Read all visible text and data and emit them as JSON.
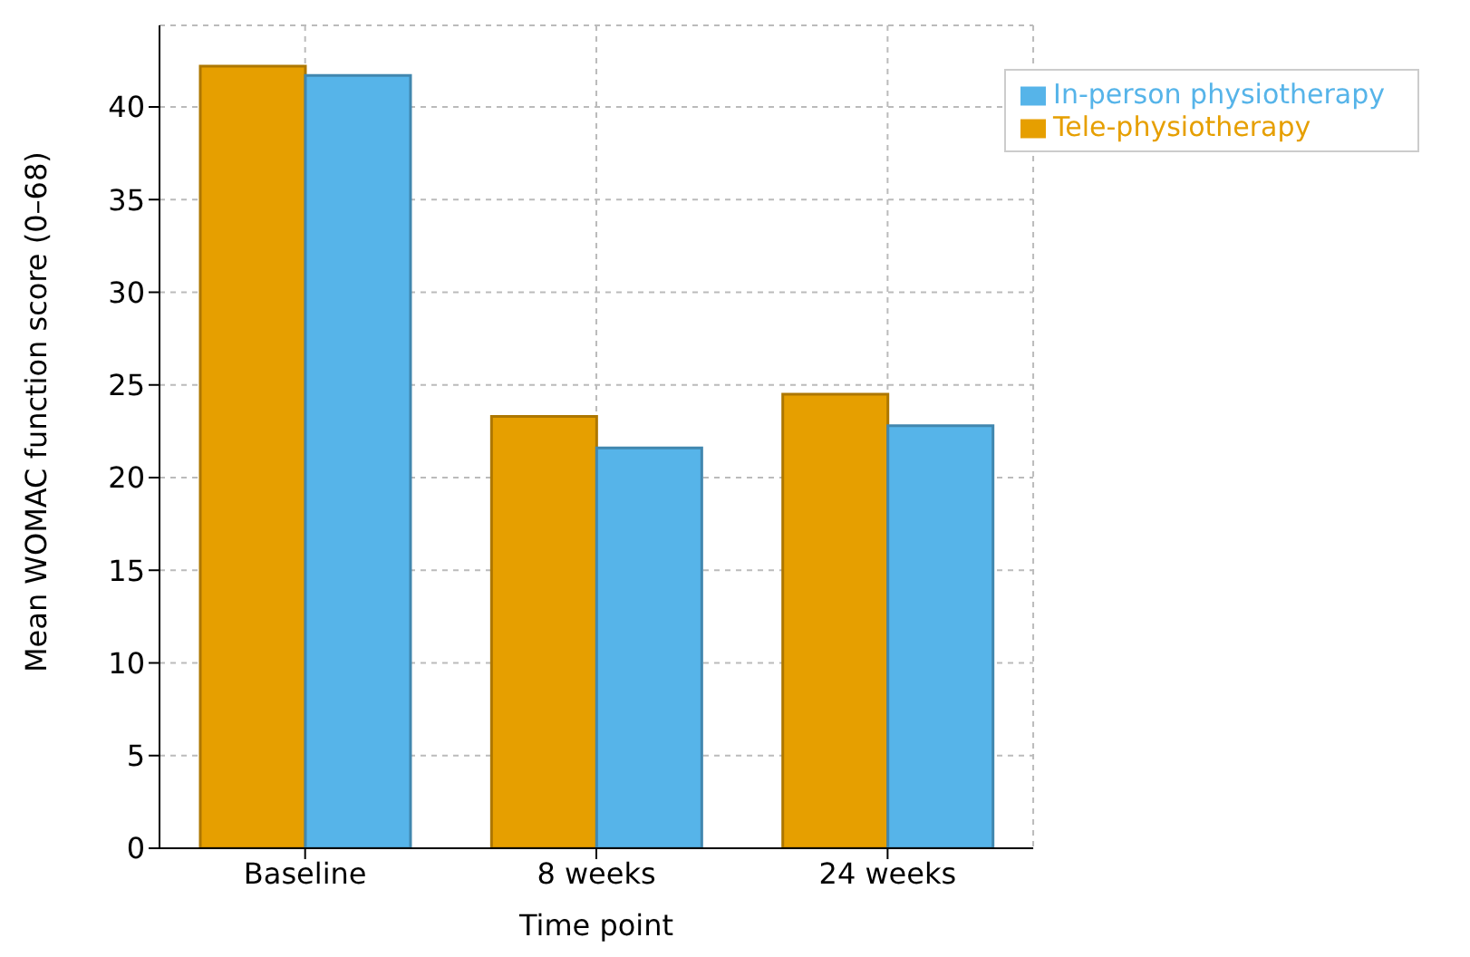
{
  "chart_data": {
    "type": "bar",
    "xlabel": "Time point",
    "ylabel": "Mean WOMAC function score (0–68)",
    "categories": [
      "Baseline",
      "8 weeks",
      "24 weeks"
    ],
    "series": [
      {
        "name": "Tele-physiotherapy",
        "color": "#e69f00",
        "values": [
          42.2,
          23.3,
          24.5
        ]
      },
      {
        "name": "In-person physiotherapy",
        "color": "#56b4e9",
        "values": [
          41.7,
          21.6,
          22.8
        ]
      }
    ],
    "ylim": [
      0,
      44.4
    ],
    "yticks": [
      0,
      5,
      10,
      15,
      20,
      25,
      30,
      35,
      40
    ],
    "grid": true,
    "legend": "top right"
  }
}
